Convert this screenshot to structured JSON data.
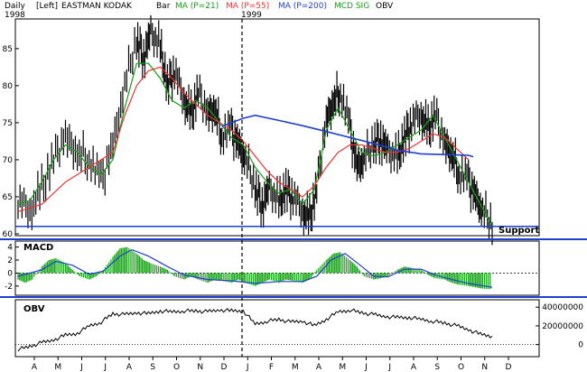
{
  "header": {
    "period": "Daily",
    "year_start": "1998",
    "scale": "[Left]",
    "symbol": "EASTMAN KODAK",
    "bar": "Bar",
    "ma21": "MA (P=21)",
    "ma55": "MA (P=55)",
    "ma200": "MA (P=200)",
    "mcd_sig": "MCD SIG",
    "obv": "OBV",
    "year_mid": "1999"
  },
  "colors": {
    "price": "#000000",
    "ma21": "#16a016",
    "ma55": "#ee3333",
    "ma200": "#1f3fd0",
    "macd_hist": "#22aa22",
    "macd_signal": "#1f3fd0",
    "support": "#1f3fd0",
    "divider": "#1f3fd0"
  },
  "chart_data": [
    {
      "type": "line",
      "panel": "price",
      "ylim": [
        60,
        89
      ],
      "yticks": [
        "85",
        "80",
        "75",
        "70",
        "65",
        "60"
      ],
      "months": [
        "A",
        "M",
        "J",
        "J",
        "A",
        "S",
        "O",
        "N",
        "D",
        "J",
        "F",
        "M",
        "A",
        "M",
        "J",
        "J",
        "A",
        "S",
        "O",
        "N",
        "D"
      ],
      "series": [
        {
          "name": "MA (P=21)",
          "points": [
            [
              0,
              64
            ],
            [
              0.5,
              64.5
            ],
            [
              1,
              67
            ],
            [
              1.5,
              70
            ],
            [
              2,
              72
            ],
            [
              2.5,
              71
            ],
            [
              3,
              69
            ],
            [
              3.5,
              68
            ],
            [
              4,
              70
            ],
            [
              4.5,
              77
            ],
            [
              5,
              83
            ],
            [
              5.5,
              83
            ],
            [
              6,
              81
            ],
            [
              6.5,
              78
            ],
            [
              7,
              77
            ],
            [
              7.5,
              78
            ],
            [
              8,
              77
            ],
            [
              8.5,
              75
            ],
            [
              9,
              73
            ],
            [
              9.5,
              72
            ],
            [
              10,
              69
            ],
            [
              10.5,
              67
            ],
            [
              11,
              65.5
            ],
            [
              11.5,
              66
            ],
            [
              12,
              64
            ],
            [
              12.5,
              66
            ],
            [
              13,
              74
            ],
            [
              13.5,
              77
            ],
            [
              14,
              74
            ],
            [
              14.5,
              71
            ],
            [
              15,
              70.5
            ],
            [
              15.5,
              71
            ],
            [
              16,
              72
            ],
            [
              16.5,
              73
            ],
            [
              17,
              74
            ],
            [
              17.5,
              76
            ],
            [
              18,
              73
            ],
            [
              18.5,
              70
            ],
            [
              19,
              67
            ],
            [
              19.5,
              64
            ],
            [
              20,
              61
            ]
          ]
        },
        {
          "name": "MA (P=55)",
          "points": [
            [
              0,
              63
            ],
            [
              1,
              64
            ],
            [
              2,
              67
            ],
            [
              3,
              69
            ],
            [
              4,
              71
            ],
            [
              4.5,
              76
            ],
            [
              5,
              80
            ],
            [
              5.5,
              82
            ],
            [
              6,
              82.5
            ],
            [
              6.5,
              81
            ],
            [
              7,
              79
            ],
            [
              7.5,
              77.5
            ],
            [
              8,
              76
            ],
            [
              8.5,
              75
            ],
            [
              9,
              74
            ],
            [
              9.5,
              72.5
            ],
            [
              10,
              70.5
            ],
            [
              10.5,
              68.5
            ],
            [
              11,
              67
            ],
            [
              11.5,
              66
            ],
            [
              12,
              65
            ],
            [
              12.5,
              66.5
            ],
            [
              13,
              69
            ],
            [
              13.5,
              71
            ],
            [
              14,
              72
            ],
            [
              14.5,
              72
            ],
            [
              15,
              71.5
            ],
            [
              15.5,
              71
            ],
            [
              16,
              71
            ],
            [
              16.5,
              71.5
            ],
            [
              17,
              72.5
            ],
            [
              17.5,
              73.5
            ],
            [
              18,
              73
            ],
            [
              18.5,
              71.5
            ],
            [
              19,
              70
            ]
          ]
        },
        {
          "name": "MA (P=200)",
          "points": [
            [
              8.6,
              74.5
            ],
            [
              9,
              75
            ],
            [
              9.5,
              75.6
            ],
            [
              10,
              76
            ],
            [
              11,
              75.3
            ],
            [
              12,
              74.6
            ],
            [
              13,
              73.8
            ],
            [
              14,
              73
            ],
            [
              15,
              72.2
            ],
            [
              16,
              71.3
            ],
            [
              17,
              70.8
            ],
            [
              18,
              70.7
            ],
            [
              19,
              70.6
            ],
            [
              19.2,
              70.4
            ]
          ]
        }
      ],
      "price_bars": [
        [
          0,
          64.5
        ],
        [
          0.5,
          63
        ],
        [
          1,
          66
        ],
        [
          1.5,
          70
        ],
        [
          2,
          73
        ],
        [
          2.5,
          71
        ],
        [
          3,
          70
        ],
        [
          3.5,
          67
        ],
        [
          4,
          72
        ],
        [
          4.5,
          80
        ],
        [
          5,
          86
        ],
        [
          5.3,
          84
        ],
        [
          5.6,
          87
        ],
        [
          6,
          85
        ],
        [
          6.3,
          80
        ],
        [
          6.6,
          82
        ],
        [
          7,
          78
        ],
        [
          7.3,
          76
        ],
        [
          7.6,
          79
        ],
        [
          8,
          76
        ],
        [
          8.3,
          77
        ],
        [
          8.6,
          73
        ],
        [
          9,
          74
        ],
        [
          9.3,
          72
        ],
        [
          9.6,
          70
        ],
        [
          10,
          66
        ],
        [
          10.3,
          64
        ],
        [
          10.6,
          66
        ],
        [
          11,
          64
        ],
        [
          11.3,
          66
        ],
        [
          11.6,
          65
        ],
        [
          12,
          63
        ],
        [
          12.3,
          62
        ],
        [
          12.6,
          66
        ],
        [
          13,
          75
        ],
        [
          13.3,
          78
        ],
        [
          13.6,
          79
        ],
        [
          14,
          74
        ],
        [
          14.3,
          69
        ],
        [
          14.6,
          70
        ],
        [
          15,
          72
        ],
        [
          15.3,
          73
        ],
        [
          15.6,
          71
        ],
        [
          16,
          70
        ],
        [
          16.3,
          73
        ],
        [
          16.6,
          75
        ],
        [
          17,
          76
        ],
        [
          17.3,
          74
        ],
        [
          17.6,
          76
        ],
        [
          18,
          72
        ],
        [
          18.3,
          71
        ],
        [
          18.6,
          68
        ],
        [
          19,
          67
        ],
        [
          19.3,
          65
        ],
        [
          19.6,
          63
        ],
        [
          20,
          61
        ]
      ],
      "annotations": [
        "Support"
      ],
      "support_level": 61
    },
    {
      "type": "bar",
      "panel": "macd",
      "title": "MACD",
      "ylim": [
        -3,
        4.5
      ],
      "yticks": [
        "4",
        "2",
        "0",
        "-2"
      ],
      "histogram": [
        [
          0,
          -1
        ],
        [
          0.3,
          -1.5
        ],
        [
          0.6,
          -1
        ],
        [
          1,
          1
        ],
        [
          1.3,
          2
        ],
        [
          1.6,
          2.3
        ],
        [
          2,
          1.5
        ],
        [
          2.3,
          0.5
        ],
        [
          2.6,
          -0.5
        ],
        [
          3,
          -1
        ],
        [
          3.3,
          -0.5
        ],
        [
          3.6,
          0.5
        ],
        [
          4,
          2.5
        ],
        [
          4.3,
          3.8
        ],
        [
          4.6,
          4
        ],
        [
          5,
          3
        ],
        [
          5.3,
          2
        ],
        [
          5.6,
          1.5
        ],
        [
          6,
          1
        ],
        [
          6.3,
          0.5
        ],
        [
          6.6,
          -0.5
        ],
        [
          7,
          -1
        ],
        [
          7.3,
          -0.5
        ],
        [
          7.6,
          -1
        ],
        [
          8,
          -1.5
        ],
        [
          8.3,
          -1
        ],
        [
          8.6,
          -1.2
        ],
        [
          9,
          -1.5
        ],
        [
          9.3,
          -1
        ],
        [
          9.6,
          -1.5
        ],
        [
          10,
          -2
        ],
        [
          10.3,
          -1.5
        ],
        [
          10.6,
          -1
        ],
        [
          11,
          -1.5
        ],
        [
          11.3,
          -1
        ],
        [
          11.6,
          -1.2
        ],
        [
          12,
          -1.5
        ],
        [
          12.3,
          -1
        ],
        [
          12.6,
          0.5
        ],
        [
          13,
          2
        ],
        [
          13.3,
          3
        ],
        [
          13.6,
          3.2
        ],
        [
          14,
          2
        ],
        [
          14.3,
          1
        ],
        [
          14.6,
          -0.5
        ],
        [
          15,
          -1
        ],
        [
          15.3,
          -0.8
        ],
        [
          15.6,
          -0.5
        ],
        [
          16,
          0.5
        ],
        [
          16.3,
          1
        ],
        [
          16.6,
          0.8
        ],
        [
          17,
          0.5
        ],
        [
          17.3,
          -0.3
        ],
        [
          17.6,
          -0.8
        ],
        [
          18,
          -1
        ],
        [
          18.3,
          -1.5
        ],
        [
          18.6,
          -1.8
        ],
        [
          19,
          -2
        ],
        [
          19.3,
          -2.2
        ],
        [
          19.6,
          -2.4
        ],
        [
          20,
          -2.5
        ]
      ],
      "signal": [
        [
          0,
          -0.5
        ],
        [
          1,
          0.5
        ],
        [
          1.6,
          1.8
        ],
        [
          2.3,
          1.2
        ],
        [
          3,
          -0.2
        ],
        [
          3.6,
          0.3
        ],
        [
          4.3,
          2.6
        ],
        [
          4.8,
          3.6
        ],
        [
          5.5,
          2.6
        ],
        [
          6.3,
          1
        ],
        [
          7,
          -0.3
        ],
        [
          8,
          -1
        ],
        [
          9,
          -1.2
        ],
        [
          10,
          -1.6
        ],
        [
          11,
          -1.3
        ],
        [
          12,
          -1.3
        ],
        [
          12.6,
          -0.5
        ],
        [
          13.2,
          2
        ],
        [
          13.8,
          3
        ],
        [
          14.5,
          1
        ],
        [
          15,
          -0.5
        ],
        [
          15.6,
          -0.6
        ],
        [
          16.3,
          0.6
        ],
        [
          17,
          0.6
        ],
        [
          17.6,
          -0.3
        ],
        [
          18.3,
          -1
        ],
        [
          19,
          -1.6
        ],
        [
          20,
          -2.2
        ]
      ]
    },
    {
      "type": "line",
      "panel": "obv",
      "title": "OBV",
      "ylim": [
        -10000000,
        45000000
      ],
      "yticks": [
        "40000000",
        "20000000",
        "0"
      ],
      "points": [
        [
          0,
          -5000000
        ],
        [
          0.5,
          -2000000
        ],
        [
          1,
          2000000
        ],
        [
          1.5,
          5000000
        ],
        [
          2,
          10000000
        ],
        [
          2.5,
          12000000
        ],
        [
          3,
          20000000
        ],
        [
          3.5,
          24000000
        ],
        [
          4,
          33000000
        ],
        [
          4.5,
          32000000
        ],
        [
          5,
          34000000
        ],
        [
          5.5,
          33000000
        ],
        [
          6,
          36000000
        ],
        [
          6.5,
          35000000
        ],
        [
          7,
          36000000
        ],
        [
          7.5,
          36000000
        ],
        [
          8,
          35000000
        ],
        [
          8.5,
          37000000
        ],
        [
          9,
          36000000
        ],
        [
          9.5,
          36000000
        ],
        [
          10,
          22000000
        ],
        [
          10.5,
          25000000
        ],
        [
          11,
          27000000
        ],
        [
          11.5,
          24000000
        ],
        [
          12,
          25000000
        ],
        [
          12.5,
          20000000
        ],
        [
          13,
          27000000
        ],
        [
          13.5,
          35000000
        ],
        [
          14,
          37000000
        ],
        [
          14.5,
          34000000
        ],
        [
          15,
          32000000
        ],
        [
          15.5,
          30000000
        ],
        [
          16,
          29000000
        ],
        [
          16.5,
          29000000
        ],
        [
          17,
          27000000
        ],
        [
          17.5,
          25000000
        ],
        [
          18,
          23000000
        ],
        [
          18.5,
          20000000
        ],
        [
          19,
          16000000
        ],
        [
          19.5,
          11000000
        ],
        [
          20,
          9000000
        ]
      ]
    }
  ]
}
